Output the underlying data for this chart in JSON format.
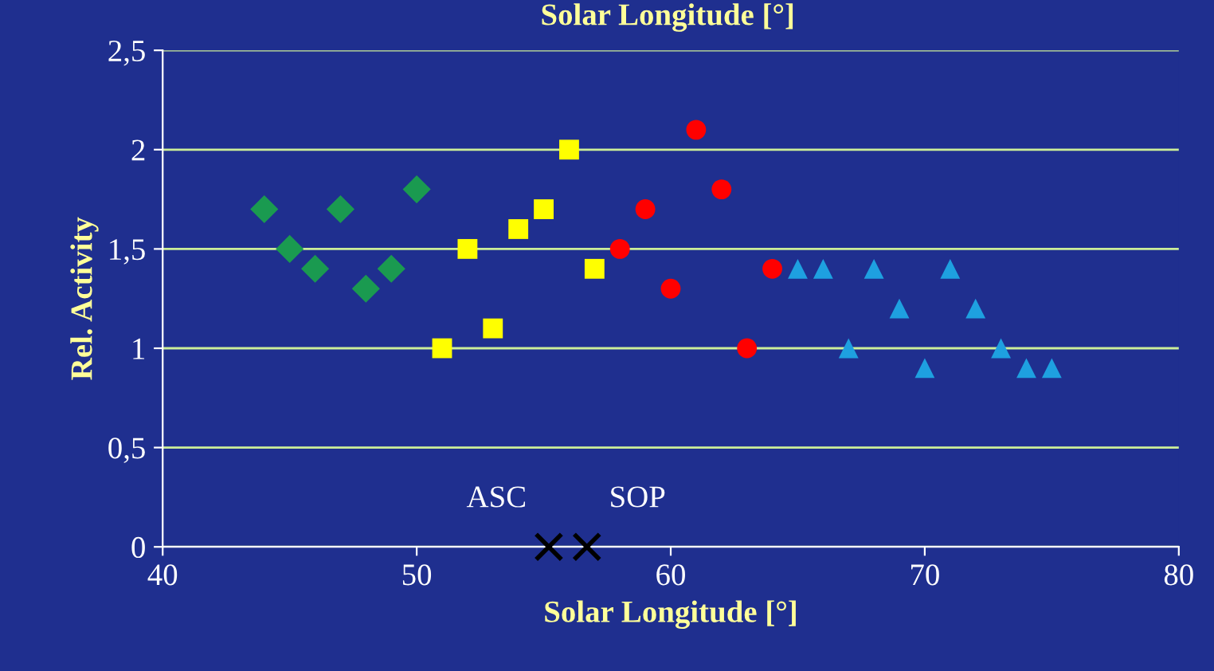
{
  "chart_data": {
    "type": "scatter",
    "title": "Solar Longitude [°]",
    "xlabel": "Solar Longitude [°]",
    "ylabel": "Rel. Activity",
    "xlim": [
      40,
      80
    ],
    "xticks": [
      40,
      50,
      60,
      70,
      80
    ],
    "ylim": [
      0,
      2.5
    ],
    "yticks": [
      {
        "value": 0,
        "label": "0"
      },
      {
        "value": 0.5,
        "label": "0,5"
      },
      {
        "value": 1,
        "label": "1"
      },
      {
        "value": 1.5,
        "label": "1,5"
      },
      {
        "value": 2,
        "label": "2"
      },
      {
        "value": 2.5,
        "label": "2,5"
      }
    ],
    "grid": "y",
    "legend": false,
    "series": [
      {
        "color": "#1a9a50",
        "marker": "diamond",
        "x": [
          44,
          45,
          46,
          47,
          48,
          49,
          50
        ],
        "values": [
          1.7,
          1.5,
          1.4,
          1.7,
          1.3,
          1.4,
          1.8
        ]
      },
      {
        "color": "#ffff00",
        "marker": "square",
        "x": [
          51,
          52,
          53,
          54,
          55,
          56,
          57
        ],
        "values": [
          1.0,
          1.5,
          1.1,
          1.6,
          1.7,
          2.0,
          1.4
        ]
      },
      {
        "color": "#ff0000",
        "marker": "circle",
        "x": [
          58,
          59,
          60,
          61,
          62,
          63,
          64
        ],
        "values": [
          1.5,
          1.7,
          1.3,
          2.1,
          1.8,
          1.0,
          1.4
        ]
      },
      {
        "color": "#1ea0e0",
        "marker": "triangle",
        "x": [
          65,
          66,
          67,
          68,
          69,
          70,
          71,
          72,
          73,
          74,
          75
        ],
        "values": [
          1.4,
          1.4,
          1.0,
          1.4,
          1.2,
          0.9,
          1.4,
          1.2,
          1.0,
          0.9,
          0.9
        ]
      },
      {
        "color": "#000000",
        "marker": "cross",
        "x": [
          55.2,
          56.7
        ],
        "values": [
          0,
          0
        ]
      }
    ],
    "annotations": [
      {
        "text": "ASC",
        "x": 55.2,
        "y": 0
      },
      {
        "text": "SOP",
        "x": 56.7,
        "y": 0
      }
    ]
  }
}
